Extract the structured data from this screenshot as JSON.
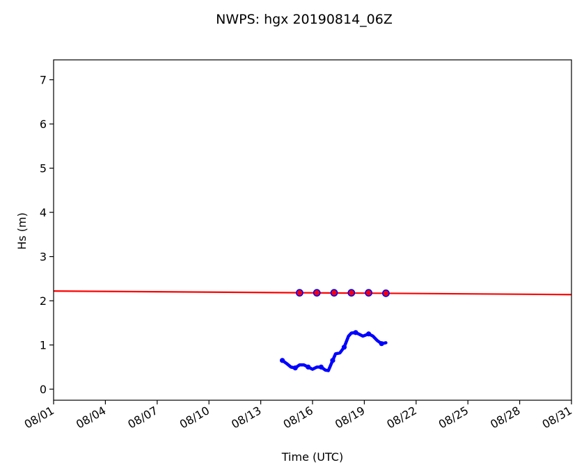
{
  "chart_data": {
    "type": "line",
    "title": "NWPS: hgx 20190814_06Z",
    "xlabel": "Time (UTC)",
    "ylabel": "Hs (m)",
    "x_ticks": [
      "08/01",
      "08/04",
      "08/07",
      "08/10",
      "08/13",
      "08/16",
      "08/19",
      "08/22",
      "08/25",
      "08/28",
      "08/31"
    ],
    "y_ticks": [
      "0",
      "1",
      "2",
      "3",
      "4",
      "5",
      "6",
      "7"
    ],
    "xlim": [
      "08/01",
      "08/31"
    ],
    "ylim": [
      -0.25,
      7.45
    ],
    "grid": false,
    "legend": "none",
    "series": [
      {
        "color": "#ff0000",
        "style": "line",
        "x": [
          "08/01 00Z",
          "08/31 00Z"
        ],
        "y": [
          2.22,
          2.14
        ]
      },
      {
        "color": "#ff0000",
        "edge_color": "#0000ff",
        "style": "markers",
        "x": [
          "08/15 06Z",
          "08/16 06Z",
          "08/17 06Z",
          "08/18 06Z",
          "08/19 06Z",
          "08/20 06Z"
        ],
        "y": [
          2.18,
          2.18,
          2.18,
          2.18,
          2.18,
          2.17
        ]
      },
      {
        "color": "#0000ff",
        "style": "thick-line",
        "x": [
          "08/14 06Z",
          "08/14 12Z",
          "08/14 18Z",
          "08/15 00Z",
          "08/15 06Z",
          "08/15 12Z",
          "08/15 18Z",
          "08/16 00Z",
          "08/16 06Z",
          "08/16 12Z",
          "08/16 18Z",
          "08/16 22Z",
          "08/17 04Z",
          "08/17 08Z",
          "08/17 14Z",
          "08/17 20Z",
          "08/18 02Z",
          "08/18 06Z",
          "08/18 12Z",
          "08/18 16Z",
          "08/18 22Z",
          "08/19 06Z",
          "08/19 12Z",
          "08/19 18Z",
          "08/20 00Z",
          "08/20 06Z"
        ],
        "y": [
          0.65,
          0.58,
          0.5,
          0.48,
          0.55,
          0.55,
          0.5,
          0.45,
          0.5,
          0.5,
          0.43,
          0.42,
          0.65,
          0.8,
          0.82,
          0.95,
          1.2,
          1.27,
          1.28,
          1.25,
          1.2,
          1.25,
          1.2,
          1.1,
          1.03,
          1.05
        ]
      }
    ]
  }
}
